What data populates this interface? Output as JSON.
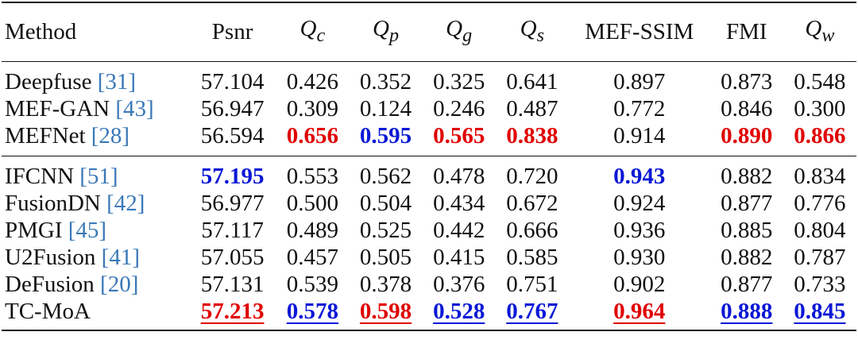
{
  "colors": {
    "first": "#e00000",
    "second": "#0a18d6",
    "ref": "#3a78b8"
  },
  "header": {
    "method": "Method",
    "psnr": "Psnr",
    "qc": {
      "sym": "Q",
      "sub": "c"
    },
    "qp": {
      "sym": "Q",
      "sub": "p"
    },
    "qg": {
      "sym": "Q",
      "sub": "g"
    },
    "qs": {
      "sym": "Q",
      "sub": "s"
    },
    "mefssim": "MEF-SSIM",
    "fmi": "FMI",
    "qw": {
      "sym": "Q",
      "sub": "w"
    }
  },
  "rows": [
    {
      "name": "Deepfuse",
      "ref": "[31]",
      "v": [
        "57.104",
        "0.426",
        "0.352",
        "0.325",
        "0.641",
        "0.897",
        "0.873",
        "0.548"
      ]
    },
    {
      "name": "MEF-GAN",
      "ref": "[43]",
      "v": [
        "56.947",
        "0.309",
        "0.124",
        "0.246",
        "0.487",
        "0.772",
        "0.846",
        "0.300"
      ]
    },
    {
      "name": "MEFNet",
      "ref": "[28]",
      "v": [
        "56.594",
        "0.656",
        "0.595",
        "0.565",
        "0.838",
        "0.914",
        "0.890",
        "0.866"
      ]
    },
    {
      "name": "IFCNN",
      "ref": "[51]",
      "v": [
        "57.195",
        "0.553",
        "0.562",
        "0.478",
        "0.720",
        "0.943",
        "0.882",
        "0.834"
      ]
    },
    {
      "name": "FusionDN",
      "ref": "[42]",
      "v": [
        "56.977",
        "0.500",
        "0.504",
        "0.434",
        "0.672",
        "0.924",
        "0.877",
        "0.776"
      ]
    },
    {
      "name": "PMGI",
      "ref": "[45]",
      "v": [
        "57.117",
        "0.489",
        "0.525",
        "0.442",
        "0.666",
        "0.936",
        "0.885",
        "0.804"
      ]
    },
    {
      "name": "U2Fusion",
      "ref": "[41]",
      "v": [
        "57.055",
        "0.457",
        "0.505",
        "0.415",
        "0.585",
        "0.930",
        "0.882",
        "0.787"
      ]
    },
    {
      "name": "DeFusion",
      "ref": "[20]",
      "v": [
        "57.131",
        "0.539",
        "0.378",
        "0.376",
        "0.751",
        "0.902",
        "0.877",
        "0.733"
      ]
    },
    {
      "name": "TC-MoA",
      "ref": "",
      "v": [
        "57.213",
        "0.578",
        "0.598",
        "0.528",
        "0.767",
        "0.964",
        "0.888",
        "0.845"
      ]
    }
  ]
}
